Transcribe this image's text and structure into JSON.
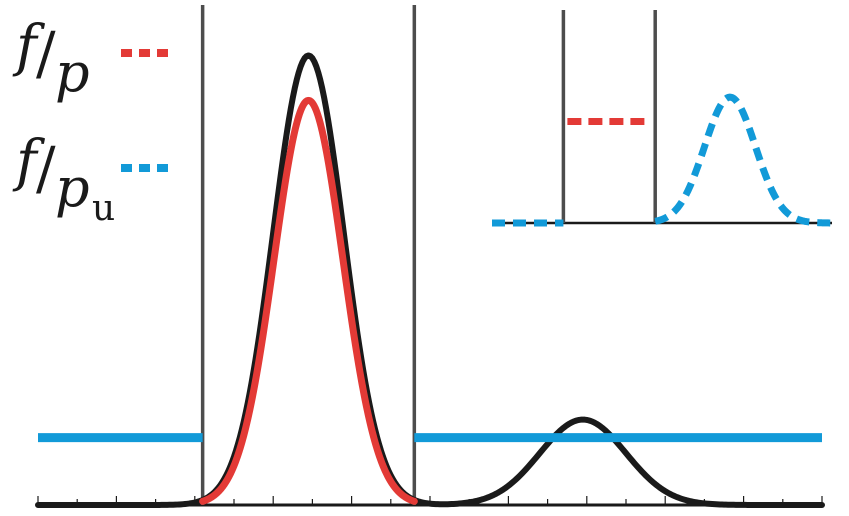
{
  "chart_data": {
    "type": "line",
    "legend": {
      "placement": "top-left",
      "entries": [
        {
          "label_main": "f",
          "label_den": "p",
          "label_sub": "",
          "style": "dotted",
          "color": "#e33a36"
        },
        {
          "label_main": "f",
          "label_den": "p",
          "label_sub": "u",
          "style": "dotted",
          "color": "#129ad8"
        }
      ]
    },
    "main": {
      "xlim": [
        0,
        10
      ],
      "ylim": [
        0,
        1.05
      ],
      "barriers": [
        2.1,
        4.8
      ],
      "minor_ticks": [
        0,
        0.5,
        1,
        1.5,
        2,
        2.5,
        3,
        3.5,
        4,
        4.5,
        5,
        5.5,
        6,
        6.5,
        7,
        7.5,
        8,
        8.5,
        9,
        9.5,
        10
      ],
      "series": [
        {
          "style": "solid",
          "color": "#1a1a1a",
          "kind": "sum-of-gaussians",
          "components": [
            {
              "amp": 1.0,
              "mu": 3.45,
              "sigma": 0.45
            },
            {
              "amp": 0.19,
              "mu": 6.95,
              "sigma": 0.55
            }
          ],
          "x_range": [
            0,
            10
          ]
        },
        {
          "style": "solid",
          "color": "#e33a36",
          "kind": "sum-of-gaussians",
          "components": [
            {
              "amp": 0.9,
              "mu": 3.45,
              "sigma": 0.44
            }
          ],
          "x_range": [
            2.1,
            4.8
          ]
        },
        {
          "style": "solid",
          "color": "#129ad8",
          "kind": "constant",
          "value": 0.15,
          "segments": [
            [
              0,
              2.1
            ],
            [
              4.8,
              10
            ]
          ]
        }
      ]
    },
    "inset": {
      "xlim": [
        0,
        10
      ],
      "ylim": [
        0,
        1.0
      ],
      "barriers": [
        2.1,
        4.8
      ],
      "series": [
        {
          "style": "dotted",
          "color": "#e33a36",
          "kind": "constant",
          "value": 0.5,
          "segments": [
            [
              2.1,
              4.8
            ]
          ]
        },
        {
          "style": "dotted",
          "color": "#129ad8",
          "kind": "sum-of-gaussians",
          "components": [
            {
              "amp": 0.62,
              "mu": 7.0,
              "sigma": 0.75
            }
          ],
          "x_range_segments": [
            [
              0,
              2.1
            ],
            [
              4.8,
              10
            ]
          ]
        }
      ]
    }
  }
}
